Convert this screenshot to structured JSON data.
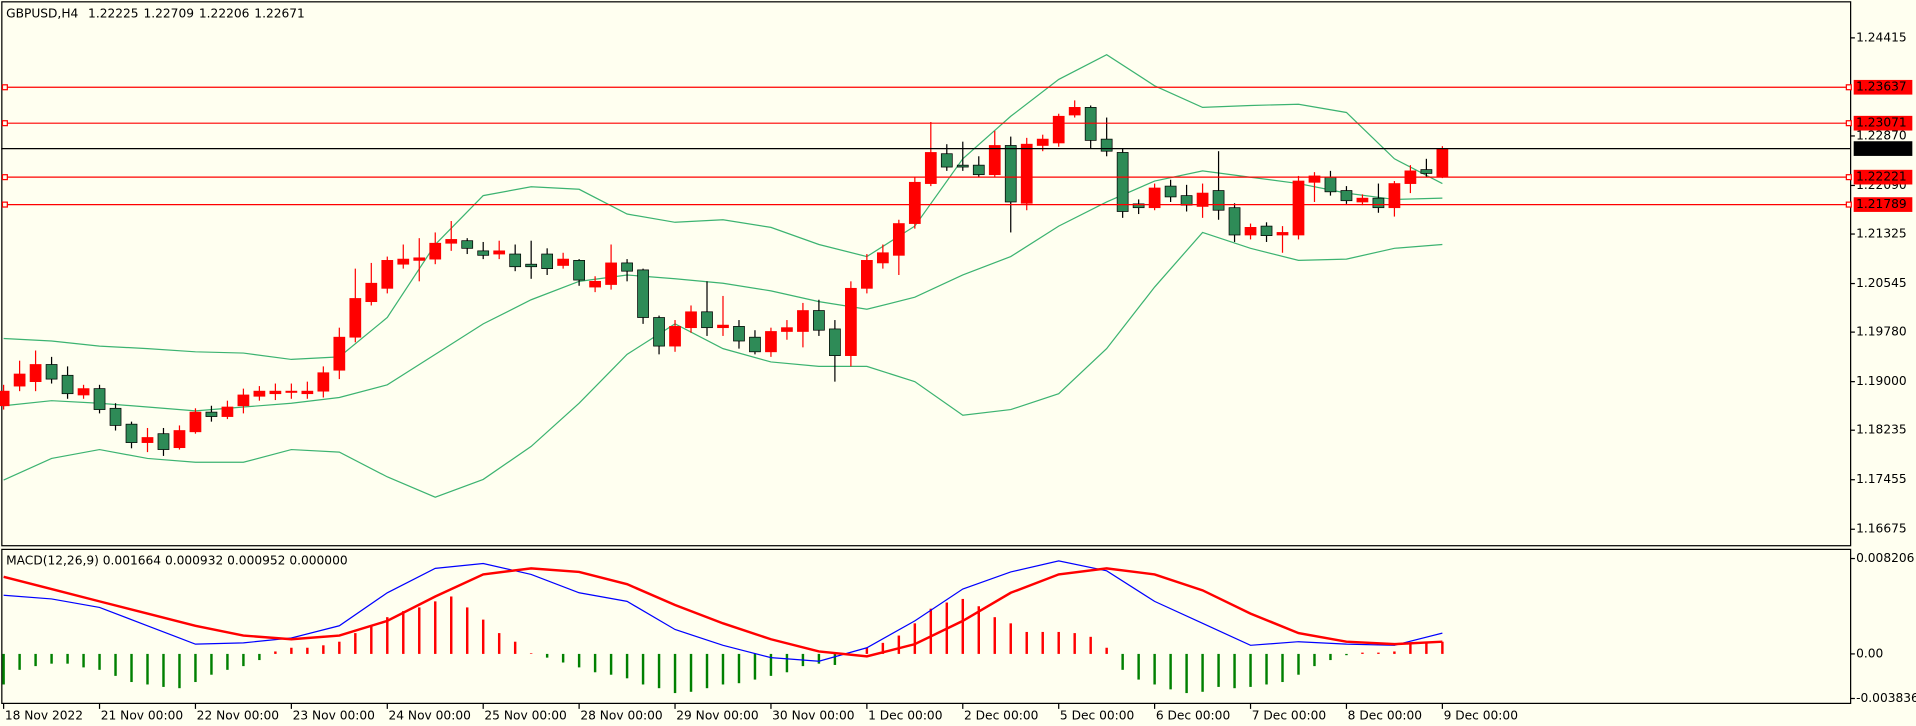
{
  "chart_data": [
    {
      "type": "candlestick",
      "symbol": "GBPUSD,H4",
      "xlim": [
        -0.15,
        115.5
      ],
      "ylim": [
        1.16425,
        1.24973
      ],
      "yticks": [
        1.24415,
        {
          "value": 1.2287,
          "label": "1.22870"
        },
        {
          "value": 1.2209,
          "label": "1.22090"
        },
        1.21325,
        1.20545,
        {
          "value": 1.1978,
          "label": "1.19780"
        },
        {
          "value": 1.19,
          "label": "1.19000"
        },
        1.18235,
        1.17455,
        1.16675
      ],
      "xticks": [
        {
          "value": 0,
          "label": "18 Nov 2022"
        },
        {
          "value": 6,
          "label": "21 Nov 00:00"
        },
        {
          "value": 12,
          "label": "22 Nov 00:00"
        },
        {
          "value": 18,
          "label": "23 Nov 00:00"
        },
        {
          "value": 24,
          "label": "24 Nov 00:00"
        },
        {
          "value": 30,
          "label": "25 Nov 00:00"
        },
        {
          "value": 36,
          "label": "28 Nov 00:00"
        },
        {
          "value": 42,
          "label": "29 Nov 00:00"
        },
        {
          "value": 48,
          "label": "30 Nov 00:00"
        },
        {
          "value": 54,
          "label": "1 Dec 00:00"
        },
        {
          "value": 60,
          "label": "2 Dec 00:00"
        },
        {
          "value": 66,
          "label": "5 Dec 00:00"
        },
        {
          "value": 72,
          "label": "6 Dec 00:00"
        },
        {
          "value": 78,
          "label": "7 Dec 00:00"
        },
        {
          "value": 84,
          "label": "8 Dec 00:00"
        },
        {
          "value": 90,
          "label": "9 Dec 00:00"
        }
      ],
      "up_color": "#ff0000",
      "down_color": "#2e8b57",
      "open": [
        1.1862,
        1.1893,
        1.19,
        1.1927,
        1.191,
        1.1879,
        1.1889,
        1.1858,
        1.1833,
        1.1804,
        1.1818,
        1.1796,
        1.1821,
        1.1852,
        1.1845,
        1.1862,
        1.1877,
        1.1881,
        1.1883,
        1.1881,
        1.1885,
        1.1918,
        1.197,
        1.2026,
        1.2047,
        1.2085,
        1.2091,
        1.2093,
        1.2118,
        1.2122,
        1.2106,
        1.2101,
        1.2101,
        1.2085,
        1.2101,
        1.2083,
        1.2091,
        1.2049,
        1.2053,
        1.2087,
        1.2076,
        1.2001,
        1.1956,
        1.1985,
        1.201,
        1.1985,
        1.1987,
        1.197,
        1.1947,
        1.1979,
        1.1979,
        1.2012,
        1.1983,
        1.1941,
        1.2047,
        1.2087,
        1.2099,
        1.2149,
        1.2212,
        1.2259,
        1.2241,
        1.2241,
        1.2226,
        1.2272,
        1.2181,
        1.2272,
        1.2276,
        1.232,
        1.2332,
        1.2282,
        1.2261,
        1.218,
        1.2174,
        1.2208,
        1.2193,
        1.2176,
        1.2201,
        1.2174,
        1.2131,
        1.2145,
        1.2131,
        1.2131,
        1.2214,
        1.2222,
        1.2201,
        1.2183,
        1.2189,
        1.2174,
        1.2212,
        1.2234,
        1.22225
      ],
      "high": [
        1.1895,
        1.1933,
        1.1949,
        1.1939,
        1.1924,
        1.1895,
        1.1895,
        1.1866,
        1.1837,
        1.1827,
        1.1827,
        1.1831,
        1.1858,
        1.1862,
        1.187,
        1.1889,
        1.1893,
        1.1897,
        1.1897,
        1.19,
        1.1924,
        1.1985,
        1.2078,
        1.2087,
        1.2097,
        1.2116,
        1.2126,
        1.2135,
        1.2153,
        1.2126,
        1.212,
        1.2122,
        1.2116,
        1.2122,
        1.211,
        1.2103,
        1.2093,
        1.2066,
        1.2116,
        1.2093,
        1.2078,
        1.2004,
        1.1997,
        1.202,
        1.2058,
        1.2035,
        1.1997,
        1.1981,
        1.1985,
        1.1997,
        1.2024,
        1.2029,
        1.1997,
        1.2058,
        1.2101,
        1.2116,
        1.2155,
        1.2222,
        1.2309,
        1.2274,
        1.2278,
        1.2255,
        1.2295,
        1.2286,
        1.2284,
        1.2289,
        1.2322,
        1.2343,
        1.2335,
        1.2316,
        1.2267,
        1.2187,
        1.2212,
        1.2218,
        1.221,
        1.2212,
        1.2263,
        1.2181,
        1.2149,
        1.2151,
        1.2145,
        1.2224,
        1.223,
        1.2232,
        1.2208,
        1.2195,
        1.2212,
        1.2216,
        1.2241,
        1.2251,
        1.22709
      ],
      "low": [
        1.1856,
        1.1885,
        1.1885,
        1.1897,
        1.1873,
        1.1873,
        1.185,
        1.1823,
        1.1795,
        1.1789,
        1.1783,
        1.1793,
        1.1818,
        1.1837,
        1.1841,
        1.185,
        1.187,
        1.1871,
        1.1873,
        1.1873,
        1.1875,
        1.1904,
        1.1962,
        1.202,
        1.2039,
        1.2078,
        1.2058,
        1.2085,
        1.2106,
        1.2101,
        1.2093,
        1.2093,
        1.2074,
        1.2062,
        1.2068,
        1.2078,
        1.2051,
        1.2041,
        1.2045,
        1.2058,
        1.1991,
        1.1943,
        1.1947,
        1.1977,
        1.1972,
        1.1972,
        1.1952,
        1.1943,
        1.1939,
        1.1966,
        1.1954,
        1.1972,
        1.19,
        1.1924,
        1.2039,
        1.2078,
        1.2068,
        1.2141,
        1.2208,
        1.2232,
        1.2232,
        1.2222,
        1.2222,
        1.2135,
        1.217,
        1.2263,
        1.227,
        1.2316,
        1.2267,
        1.2255,
        1.2158,
        1.2164,
        1.217,
        1.2183,
        1.2168,
        1.2158,
        1.2155,
        1.212,
        1.2124,
        1.212,
        1.2103,
        1.2124,
        1.2183,
        1.2193,
        1.218,
        1.2178,
        1.2166,
        1.216,
        1.2197,
        1.2222,
        1.22206
      ],
      "close": [
        1.1885,
        1.1912,
        1.1927,
        1.1904,
        1.1881,
        1.1889,
        1.1856,
        1.1831,
        1.1804,
        1.1812,
        1.1793,
        1.1823,
        1.1852,
        1.1845,
        1.186,
        1.1879,
        1.1885,
        1.1885,
        1.1885,
        1.1885,
        1.1914,
        1.197,
        1.2031,
        1.2055,
        1.2091,
        1.2093,
        1.2095,
        1.2118,
        1.2124,
        1.211,
        1.2099,
        1.2106,
        1.2081,
        1.2081,
        1.2078,
        1.2093,
        1.206,
        1.2058,
        1.2087,
        1.2074,
        1.2001,
        1.1956,
        1.1987,
        1.201,
        1.1985,
        1.1989,
        1.1964,
        1.1947,
        1.1979,
        1.1985,
        1.2012,
        1.1981,
        1.1941,
        1.2047,
        1.2091,
        1.2103,
        1.2149,
        1.2214,
        1.2261,
        1.2238,
        1.2238,
        1.2226,
        1.2272,
        1.2183,
        1.2274,
        1.2282,
        1.2318,
        1.2332,
        1.228,
        1.2263,
        1.2168,
        1.2174,
        1.2205,
        1.2191,
        1.2178,
        1.2197,
        1.217,
        1.2131,
        1.2143,
        1.213,
        1.2135,
        1.2216,
        1.2224,
        1.2199,
        1.2185,
        1.2189,
        1.2174,
        1.2212,
        1.2232,
        1.2228,
        1.22671
      ],
      "bands": {
        "color": "#3cb371",
        "x": [
          0,
          3,
          6,
          9,
          12,
          15,
          18,
          21,
          24,
          27,
          30,
          33,
          36,
          39,
          42,
          45,
          48,
          51,
          54,
          57,
          60,
          63,
          66,
          69,
          72,
          75,
          78,
          81,
          84,
          87,
          90
        ],
        "upper": [
          1.1968,
          1.1964,
          1.1956,
          1.1952,
          1.1947,
          1.1945,
          1.1935,
          1.1939,
          1.2001,
          1.2116,
          1.2193,
          1.2207,
          1.2203,
          1.2164,
          1.2151,
          1.2155,
          1.2143,
          1.2116,
          1.2097,
          1.2145,
          1.2251,
          1.2318,
          1.2376,
          1.2415,
          1.2366,
          1.2332,
          1.2335,
          1.2337,
          1.2324,
          1.2251,
          1.2212
        ],
        "middle": [
          1.1862,
          1.187,
          1.1866,
          1.186,
          1.1854,
          1.186,
          1.1866,
          1.1875,
          1.1895,
          1.1943,
          1.1991,
          1.2029,
          1.2058,
          1.2068,
          1.2062,
          1.2055,
          1.2043,
          1.2026,
          1.2014,
          1.2033,
          1.2068,
          1.2097,
          1.2145,
          1.2183,
          1.2216,
          1.2232,
          1.2222,
          1.2212,
          1.2197,
          1.2187,
          1.2189
        ],
        "lower": [
          1.1745,
          1.1779,
          1.1793,
          1.1779,
          1.1773,
          1.1773,
          1.1793,
          1.1789,
          1.175,
          1.1718,
          1.1746,
          1.1798,
          1.1866,
          1.1943,
          1.1991,
          1.1952,
          1.1931,
          1.1924,
          1.1924,
          1.19,
          1.1847,
          1.1856,
          1.1881,
          1.1952,
          1.2049,
          1.2135,
          1.211,
          1.2091,
          1.2093,
          1.211,
          1.2116
        ]
      },
      "levels": [
        {
          "value": 1.23637,
          "color": "#ff0000"
        },
        {
          "value": 1.23071,
          "color": "#ff0000"
        },
        {
          "value": 1.22221,
          "color": "#ff0000"
        },
        {
          "value": 1.21789,
          "color": "#ff0000"
        }
      ],
      "price_line_color": "#000000"
    },
    {
      "type": "macd",
      "title": "MACD(12,26,9) 0.001664 0.000932 0.000952 0.000000",
      "ylim": [
        -0.00431,
        0.00894
      ],
      "yticks": [
        0.008206,
        {
          "value": 0,
          "label": "0.00"
        },
        -0.003836
      ],
      "up_color": "#ff0000",
      "down_color": "#008000",
      "main_color": "#0000ff",
      "signal_color": "#ff0000",
      "histogram": [
        -0.00263,
        -0.00137,
        -0.00105,
        -0.00084,
        -0.00084,
        -0.00116,
        -0.00137,
        -0.00189,
        -0.00242,
        -0.00263,
        -0.00284,
        -0.00295,
        -0.00242,
        -0.00179,
        -0.00137,
        -0.00105,
        -0.00053,
        0.00021,
        0.00053,
        0.00053,
        0.00074,
        0.00105,
        0.00179,
        0.00242,
        0.00316,
        0.00368,
        0.004,
        0.00452,
        0.00494,
        0.004,
        0.00295,
        0.00179,
        0.00105,
        5e-05,
        -0.00032,
        -0.00074,
        -0.00116,
        -0.00158,
        -0.00179,
        -0.0021,
        -0.00263,
        -0.00295,
        -0.00337,
        -0.00326,
        -0.00295,
        -0.00263,
        -0.00252,
        -0.00221,
        -0.00189,
        -0.00158,
        -0.00105,
        -0.00084,
        -0.00095,
        -5e-05,
        0.00053,
        0.00095,
        0.00158,
        0.00263,
        0.00389,
        0.00442,
        0.00473,
        0.0041,
        0.00316,
        0.00263,
        0.00189,
        0.00189,
        0.00189,
        0.00179,
        0.00147,
        0.00053,
        -0.00137,
        -0.00221,
        -0.00263,
        -0.00305,
        -0.00337,
        -0.00326,
        -0.00284,
        -0.00295,
        -0.00284,
        -0.00263,
        -0.00242,
        -0.00179,
        -0.00105,
        -0.00053,
        -0.00011,
        0.00011,
        0.00011,
        0.00021,
        0.00084,
        0.00105,
        0.00105
      ],
      "x": [
        0,
        3,
        6,
        9,
        12,
        15,
        18,
        21,
        24,
        27,
        30,
        33,
        36,
        39,
        42,
        45,
        48,
        51,
        54,
        57,
        60,
        63,
        66,
        69,
        72,
        75,
        78,
        81,
        84,
        87,
        90
      ],
      "main": [
        0.00505,
        0.00473,
        0.004,
        0.00242,
        0.00084,
        0.00095,
        0.00137,
        0.00242,
        0.00526,
        0.00736,
        0.00778,
        0.00684,
        0.00526,
        0.00452,
        0.0021,
        0.00074,
        -0.00032,
        -0.00063,
        0.00053,
        0.00284,
        0.00558,
        0.00705,
        0.008,
        0.00715,
        0.00452,
        0.00263,
        0.00074,
        0.00105,
        0.00084,
        0.00074,
        0.00179
      ],
      "signal": [
        0.00663,
        0.00558,
        0.00452,
        0.00347,
        0.00242,
        0.00158,
        0.00126,
        0.00158,
        0.00284,
        0.00494,
        0.00684,
        0.00736,
        0.00705,
        0.006,
        0.00421,
        0.00263,
        0.00126,
        0.00021,
        -0.00021,
        0.00084,
        0.00284,
        0.00526,
        0.00684,
        0.00736,
        0.00684,
        0.00547,
        0.00347,
        0.00179,
        0.00105,
        0.00084,
        0.00105
      ]
    }
  ]
}
